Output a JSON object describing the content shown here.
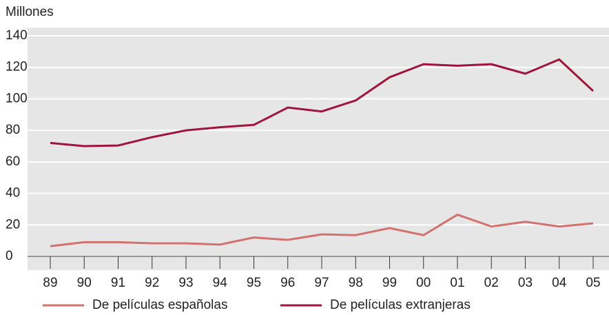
{
  "chart_data": {
    "type": "line",
    "y_label": "Millones",
    "categories": [
      "89",
      "90",
      "91",
      "92",
      "93",
      "94",
      "95",
      "96",
      "97",
      "98",
      "99",
      "00",
      "01",
      "02",
      "03",
      "04",
      "05"
    ],
    "series": [
      {
        "name": "De películas españolas",
        "color": "#d4706e",
        "values": [
          6.5,
          9,
          9,
          8.3,
          8.3,
          7.5,
          12,
          10.5,
          14,
          13.5,
          18,
          13.5,
          26.5,
          19,
          22,
          19,
          21
        ]
      },
      {
        "name": "De películas extranjeras",
        "color": "#a0143c",
        "values": [
          72,
          70,
          70.4,
          75.7,
          80,
          82,
          83.5,
          94.5,
          92,
          99,
          113.7,
          122,
          121,
          122,
          116,
          125,
          105
        ]
      }
    ],
    "ylim": [
      0,
      140
    ],
    "yticks": [
      0,
      20,
      40,
      60,
      80,
      100,
      120,
      140
    ],
    "grid": true
  }
}
